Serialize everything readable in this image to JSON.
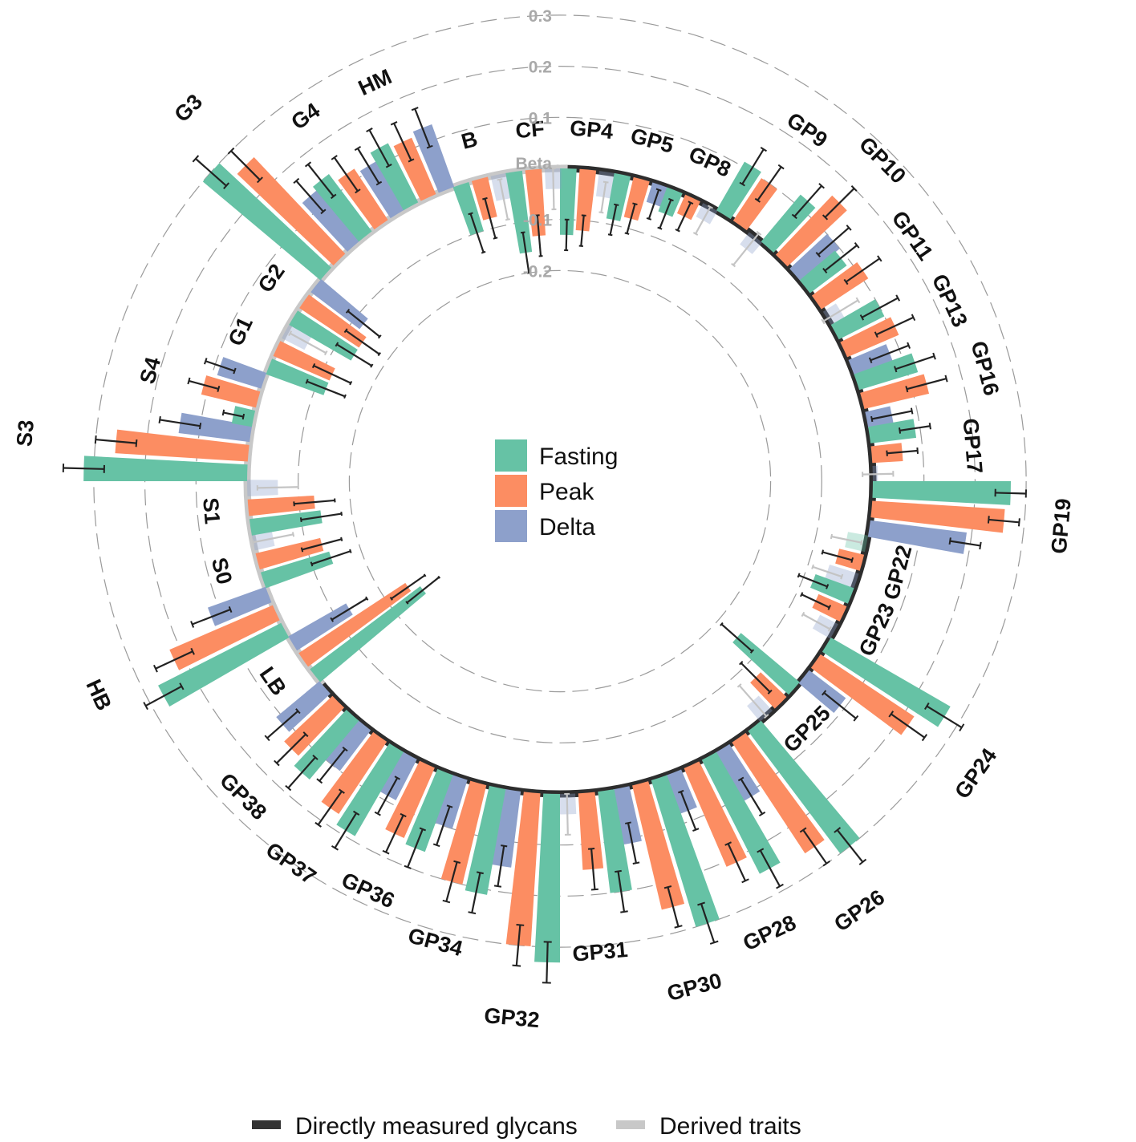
{
  "chart_data": {
    "type": "circular-bar",
    "value_axis_label": "Beta",
    "ticks": [
      0.3,
      0.2,
      0.1,
      -0.1,
      -0.2
    ],
    "tick_labels": [
      "0.3",
      "0.2",
      "0.1",
      "-0.1",
      "-0.2"
    ],
    "ylim": [
      -0.3,
      0.3
    ],
    "series_names": [
      "Fasting",
      "Peak",
      "Delta"
    ],
    "series_colors": [
      "#66c2a5",
      "#fc8d62",
      "#8da0cb"
    ],
    "group_legend": [
      {
        "label": "Directly measured glycans",
        "color": "#333333"
      },
      {
        "label": "Derived traits",
        "color": "#c8c8c8"
      }
    ],
    "categories": [
      {
        "name": "GP4",
        "group": "direct",
        "values": [
          -0.13,
          -0.12,
          -0.05
        ],
        "errors": [
          0.03,
          0.03,
          0.03
        ],
        "faded": [
          false,
          false,
          true
        ]
      },
      {
        "name": "GP5",
        "group": "direct",
        "values": [
          -0.09,
          -0.08,
          -0.04
        ],
        "errors": [
          0.03,
          0.03,
          0.03
        ],
        "faded": [
          false,
          false,
          false
        ]
      },
      {
        "name": "GP8",
        "group": "direct",
        "values": [
          -0.05,
          -0.04,
          -0.03
        ],
        "errors": [
          0.03,
          0.03,
          0.03
        ],
        "faded": [
          false,
          false,
          true
        ]
      },
      {
        "name": "GP9",
        "group": "direct",
        "values": [
          0.11,
          0.1,
          -0.03
        ],
        "errors": [
          0.04,
          0.04,
          0.04
        ],
        "faded": [
          false,
          false,
          true
        ]
      },
      {
        "name": "GP10",
        "group": "direct",
        "values": [
          0.12,
          0.16,
          0.1
        ],
        "errors": [
          0.04,
          0.04,
          0.04
        ],
        "faded": [
          false,
          false,
          false
        ]
      },
      {
        "name": "GP11",
        "group": "direct",
        "values": [
          0.09,
          0.11,
          0.03
        ],
        "errors": [
          0.04,
          0.04,
          0.04
        ],
        "faded": [
          false,
          false,
          true
        ]
      },
      {
        "name": "GP13",
        "group": "direct",
        "values": [
          0.1,
          0.11,
          0.08
        ],
        "errors": [
          0.04,
          0.04,
          0.04
        ],
        "faded": [
          false,
          false,
          false
        ]
      },
      {
        "name": "GP16",
        "group": "direct",
        "values": [
          0.12,
          0.13,
          0.05
        ],
        "errors": [
          0.04,
          0.04,
          0.04
        ],
        "faded": [
          false,
          false,
          false
        ]
      },
      {
        "name": "GP17",
        "group": "direct",
        "values": [
          0.09,
          0.06,
          0.01
        ],
        "errors": [
          0.03,
          0.03,
          0.03
        ],
        "faded": [
          false,
          false,
          true
        ]
      },
      {
        "name": "GP19",
        "group": "direct",
        "values": [
          0.27,
          0.26,
          0.19
        ],
        "errors": [
          0.03,
          0.03,
          0.03
        ],
        "faded": [
          false,
          false,
          false
        ]
      },
      {
        "name": "GP22",
        "group": "direct",
        "values": [
          -0.04,
          -0.05,
          -0.06
        ],
        "errors": [
          0.03,
          0.03,
          0.03
        ],
        "faded": [
          true,
          false,
          true
        ]
      },
      {
        "name": "GP23",
        "group": "direct",
        "values": [
          -0.08,
          -0.06,
          -0.04
        ],
        "errors": [
          0.03,
          0.03,
          0.03
        ],
        "faded": [
          false,
          false,
          true
        ]
      },
      {
        "name": "GP24",
        "group": "direct",
        "values": [
          0.27,
          0.22,
          0.09
        ],
        "errors": [
          0.04,
          0.04,
          0.04
        ],
        "faded": [
          false,
          false,
          false
        ]
      },
      {
        "name": "GP25",
        "group": "direct",
        "values": [
          -0.15,
          -0.07,
          -0.04
        ],
        "errors": [
          0.04,
          0.04,
          0.04
        ],
        "faded": [
          false,
          false,
          true
        ]
      },
      {
        "name": "GP26",
        "group": "direct",
        "values": [
          0.3,
          0.26,
          0.11
        ],
        "errors": [
          0.04,
          0.04,
          0.04
        ],
        "faded": [
          false,
          false,
          false
        ]
      },
      {
        "name": "GP28",
        "group": "direct",
        "values": [
          0.25,
          0.21,
          0.08
        ],
        "errors": [
          0.04,
          0.04,
          0.04
        ],
        "faded": [
          false,
          false,
          false
        ]
      },
      {
        "name": "GP30",
        "group": "direct",
        "values": [
          0.3,
          0.25,
          0.11
        ],
        "errors": [
          0.04,
          0.04,
          0.04
        ],
        "faded": [
          false,
          false,
          false
        ]
      },
      {
        "name": "GP31",
        "group": "direct",
        "values": [
          0.2,
          0.15,
          0.04
        ],
        "errors": [
          0.04,
          0.04,
          0.04
        ],
        "faded": [
          false,
          false,
          true
        ]
      },
      {
        "name": "GP32",
        "group": "direct",
        "values": [
          0.33,
          0.3,
          0.15
        ],
        "errors": [
          0.04,
          0.04,
          0.04
        ],
        "faded": [
          false,
          false,
          false
        ]
      },
      {
        "name": "GP34",
        "group": "direct",
        "values": [
          0.21,
          0.2,
          0.1
        ],
        "errors": [
          0.04,
          0.04,
          0.04
        ],
        "faded": [
          false,
          false,
          false
        ]
      },
      {
        "name": "GP36",
        "group": "direct",
        "values": [
          0.16,
          0.15,
          0.09
        ],
        "errors": [
          0.04,
          0.04,
          0.04
        ],
        "faded": [
          false,
          false,
          false
        ]
      },
      {
        "name": "GP37",
        "group": "direct",
        "values": [
          0.19,
          0.17,
          0.1
        ],
        "errors": [
          0.04,
          0.04,
          0.04
        ],
        "faded": [
          false,
          false,
          false
        ]
      },
      {
        "name": "GP38",
        "group": "direct",
        "values": [
          0.15,
          0.13,
          0.11
        ],
        "errors": [
          0.04,
          0.04,
          0.04
        ],
        "faded": [
          false,
          false,
          false
        ]
      },
      {
        "name": "LB",
        "group": "derived",
        "values": [
          -0.27,
          -0.25,
          -0.13
        ],
        "errors": [
          0.04,
          0.04,
          0.04
        ],
        "faded": [
          false,
          false,
          false
        ]
      },
      {
        "name": "HB",
        "group": "derived",
        "values": [
          0.27,
          0.22,
          0.12
        ],
        "errors": [
          0.04,
          0.04,
          0.04
        ],
        "faded": [
          false,
          false,
          false
        ]
      },
      {
        "name": "S0",
        "group": "derived",
        "values": [
          -0.14,
          -0.13,
          -0.04
        ],
        "errors": [
          0.04,
          0.04,
          0.04
        ],
        "faded": [
          false,
          false,
          true
        ]
      },
      {
        "name": "S1",
        "group": "derived",
        "values": [
          -0.14,
          -0.13,
          -0.06
        ],
        "errors": [
          0.04,
          0.04,
          0.04
        ],
        "faded": [
          false,
          false,
          true
        ]
      },
      {
        "name": "S3",
        "group": "derived",
        "values": [
          0.32,
          0.26,
          0.14
        ],
        "errors": [
          0.04,
          0.04,
          0.04
        ],
        "faded": [
          false,
          false,
          false
        ]
      },
      {
        "name": "S4",
        "group": "derived",
        "values": [
          0.04,
          0.11,
          0.09
        ],
        "errors": [
          0.02,
          0.03,
          0.03
        ],
        "faded": [
          false,
          false,
          false
        ]
      },
      {
        "name": "G1",
        "group": "derived",
        "values": [
          -0.12,
          -0.12,
          -0.05
        ],
        "errors": [
          0.04,
          0.04,
          0.04
        ],
        "faded": [
          false,
          false,
          true
        ]
      },
      {
        "name": "G2",
        "group": "derived",
        "values": [
          -0.14,
          -0.14,
          -0.12
        ],
        "errors": [
          0.04,
          0.04,
          0.04
        ],
        "faded": [
          false,
          false,
          false
        ]
      },
      {
        "name": "G3",
        "group": "derived",
        "values": [
          0.3,
          0.26,
          0.13
        ],
        "errors": [
          0.04,
          0.04,
          0.04
        ],
        "faded": [
          false,
          false,
          false
        ]
      },
      {
        "name": "G4",
        "group": "derived",
        "values": [
          0.14,
          0.12,
          0.11
        ],
        "errors": [
          0.04,
          0.04,
          0.04
        ],
        "faded": [
          false,
          false,
          false
        ]
      },
      {
        "name": "HM",
        "group": "derived",
        "values": [
          0.13,
          0.12,
          0.13
        ],
        "errors": [
          0.04,
          0.04,
          0.04
        ],
        "faded": [
          false,
          false,
          false
        ]
      },
      {
        "name": "B",
        "group": "derived",
        "values": [
          -0.1,
          -0.08,
          -0.05
        ],
        "errors": [
          0.04,
          0.04,
          0.04
        ],
        "faded": [
          false,
          false,
          true
        ]
      },
      {
        "name": "CF",
        "group": "derived",
        "values": [
          -0.16,
          -0.13,
          -0.04
        ],
        "errors": [
          0.04,
          0.04,
          0.04
        ],
        "faded": [
          false,
          false,
          true
        ]
      }
    ]
  }
}
